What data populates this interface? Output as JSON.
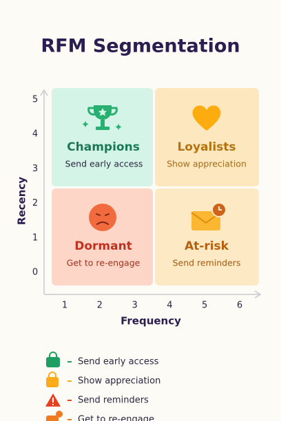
{
  "header": {
    "title": "RFM Segmentation"
  },
  "axes": {
    "y_label": "Recency",
    "x_label": "Frequency",
    "y_ticks": [
      5,
      4,
      3,
      2,
      1,
      0
    ],
    "x_ticks": [
      1,
      2,
      3,
      4,
      5,
      6
    ]
  },
  "quadrants": [
    {
      "title": "Champions",
      "subtitle": "Send early access"
    },
    {
      "title": "Loyalists",
      "subtitle": "Show appreciation"
    },
    {
      "title": "Dormant",
      "subtitle": "Get to re-engage"
    },
    {
      "title": "At-risk",
      "subtitle": "Send reminders"
    }
  ],
  "legend": [
    {
      "label": "Send early access"
    },
    {
      "label": "Show appreciation"
    },
    {
      "label": "Send reminders"
    },
    {
      "label": "Get to re-engage"
    }
  ]
}
